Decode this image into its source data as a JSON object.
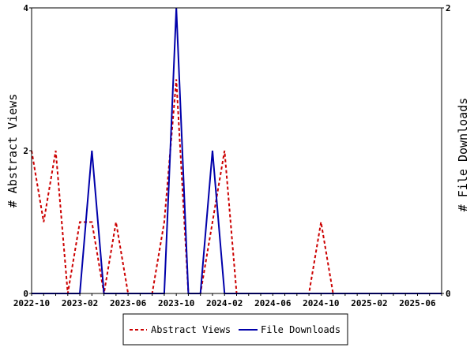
{
  "chart_data": {
    "type": "line",
    "x": [
      "2022-10",
      "2022-11",
      "2022-12",
      "2023-01",
      "2023-02",
      "2023-03",
      "2023-04",
      "2023-05",
      "2023-06",
      "2023-07",
      "2023-08",
      "2023-09",
      "2023-10",
      "2023-11",
      "2023-12",
      "2024-01",
      "2024-02",
      "2024-03",
      "2024-04",
      "2024-05",
      "2024-06",
      "2024-07",
      "2024-08",
      "2024-09",
      "2024-10",
      "2024-11",
      "2024-12",
      "2025-01",
      "2025-02",
      "2025-03",
      "2025-04",
      "2025-05",
      "2025-06",
      "2025-07",
      "2025-08"
    ],
    "x_tick_labels": [
      "2022-10",
      "2023-02",
      "2023-06",
      "2023-10",
      "2024-02",
      "2024-06",
      "2024-10",
      "2025-02",
      "2025-06"
    ],
    "series": [
      {
        "name": "Abstract Views",
        "axis": "left",
        "color": "#cc0000",
        "dash": "dashed",
        "values": [
          2,
          1,
          2,
          0,
          1,
          1,
          0,
          1,
          0,
          0,
          0,
          1,
          3,
          0,
          0,
          1,
          2,
          0,
          0,
          0,
          0,
          0,
          0,
          0,
          1,
          0,
          0,
          0,
          0,
          0,
          0,
          0,
          0,
          0,
          0
        ]
      },
      {
        "name": "File Downloads",
        "axis": "right",
        "color": "#0000aa",
        "dash": "solid",
        "values": [
          0,
          0,
          0,
          0,
          0,
          1,
          0,
          0,
          0,
          0,
          0,
          0,
          2,
          0,
          0,
          1,
          0,
          0,
          0,
          0,
          0,
          0,
          0,
          0,
          0,
          0,
          0,
          0,
          0,
          0,
          0,
          0,
          0,
          0,
          0
        ]
      }
    ],
    "y_left": {
      "label": "# Abstract Views",
      "range": [
        0,
        4
      ],
      "ticks": [
        "0",
        "2",
        "4"
      ]
    },
    "y_right": {
      "label": "# File Downloads",
      "range": [
        0,
        2
      ],
      "ticks": [
        "0",
        "2"
      ]
    },
    "legend": {
      "position": "bottom-center"
    },
    "grid": false
  }
}
